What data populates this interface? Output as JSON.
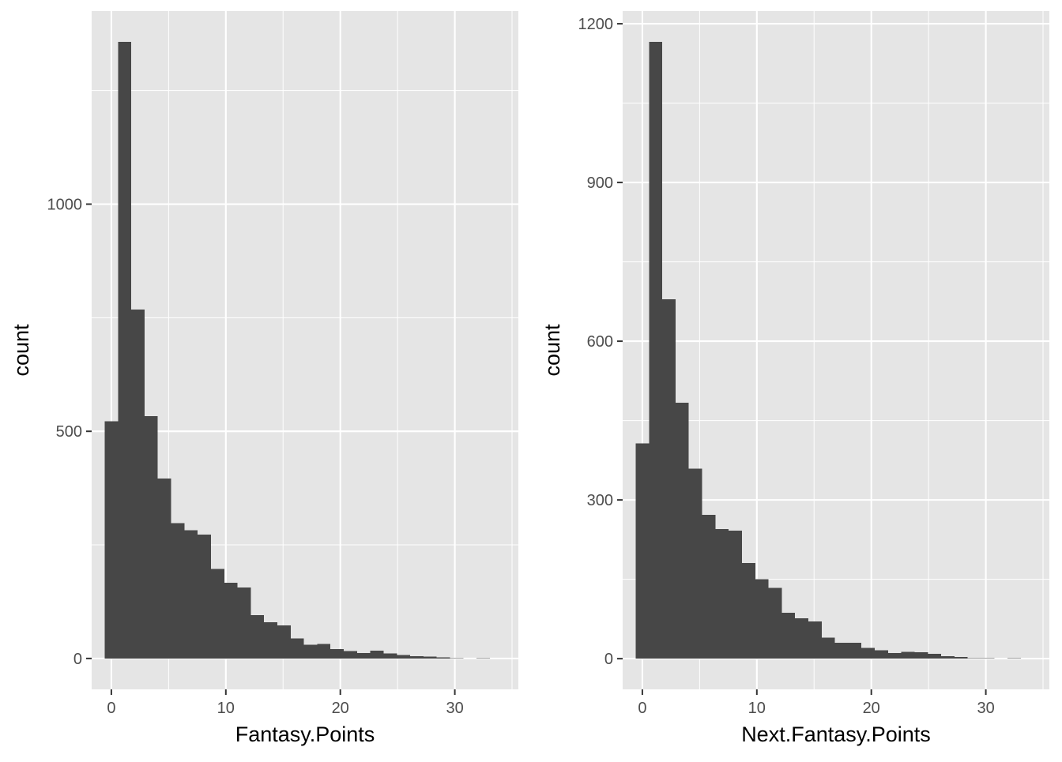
{
  "chart_data": [
    {
      "type": "bar",
      "chart_style": "histogram",
      "bin_width": 1.16,
      "bin_centers": [
        0,
        1.16,
        2.32,
        3.48,
        4.64,
        5.8,
        6.96,
        8.12,
        9.28,
        10.44,
        11.6,
        12.76,
        13.92,
        15.08,
        16.24,
        17.4,
        18.56,
        19.72,
        20.88,
        22.04,
        23.2,
        24.36,
        25.52,
        26.68,
        27.84,
        29,
        30.16,
        31.32,
        32.48
      ],
      "values": [
        522,
        1357,
        768,
        533,
        396,
        298,
        282,
        273,
        197,
        167,
        156,
        95,
        80,
        73,
        44,
        30,
        32,
        21,
        16,
        12,
        17,
        11,
        8,
        5,
        4,
        2,
        1,
        0,
        1
      ],
      "xlabel": "Fantasy.Points",
      "ylabel": "count",
      "xlim": [
        -1.72,
        35.55
      ],
      "ylim": [
        -68,
        1425
      ],
      "x_ticks": [
        0,
        10,
        20,
        30
      ],
      "x_tick_labels": [
        "0",
        "10",
        "20",
        "30"
      ],
      "y_ticks": [
        0,
        500,
        1000
      ],
      "y_tick_labels": [
        "0",
        "500",
        "1000"
      ],
      "grid": true,
      "bar_color": "#474747",
      "panel_background": "#e5e5e5"
    },
    {
      "type": "bar",
      "chart_style": "histogram",
      "bin_width": 1.16,
      "bin_centers": [
        0,
        1.16,
        2.32,
        3.48,
        4.64,
        5.8,
        6.96,
        8.12,
        9.28,
        10.44,
        11.6,
        12.76,
        13.92,
        15.08,
        16.24,
        17.4,
        18.56,
        19.72,
        20.88,
        22.04,
        23.2,
        24.36,
        25.52,
        26.68,
        27.84,
        29,
        30.16,
        31.32,
        32.48
      ],
      "values": [
        407,
        1166,
        679,
        484,
        359,
        272,
        245,
        242,
        181,
        150,
        134,
        87,
        76,
        70,
        40,
        30,
        30,
        20,
        16,
        11,
        13,
        12,
        9,
        5,
        3,
        1,
        1,
        0,
        1
      ],
      "xlabel": "Next.Fantasy.Points",
      "ylabel": "count",
      "xlim": [
        -1.72,
        35.55
      ],
      "ylim": [
        -58,
        1224
      ],
      "x_ticks": [
        0,
        10,
        20,
        30
      ],
      "x_tick_labels": [
        "0",
        "10",
        "20",
        "30"
      ],
      "y_ticks": [
        0,
        300,
        600,
        900,
        1200
      ],
      "y_tick_labels": [
        "0",
        "300",
        "600",
        "900",
        "1200"
      ],
      "grid": true,
      "bar_color": "#474747",
      "panel_background": "#e5e5e5"
    }
  ]
}
